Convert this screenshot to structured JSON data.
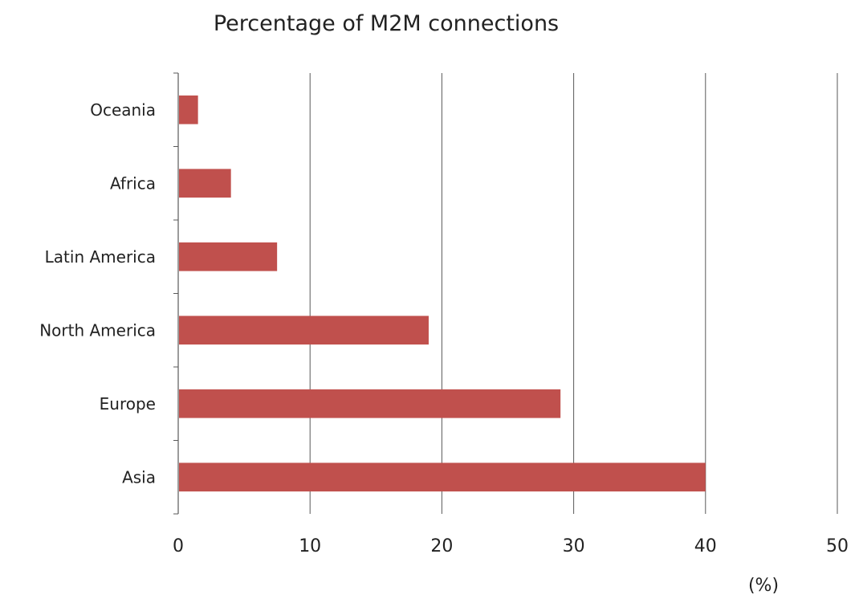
{
  "chart_data": {
    "type": "bar",
    "orientation": "horizontal",
    "title": "Percentage of M2M connections",
    "categories": [
      "Oceania",
      "Africa",
      "Latin America",
      "North America",
      "Europe",
      "Asia"
    ],
    "values": [
      1.5,
      4,
      7.5,
      19,
      29,
      40
    ],
    "xlabel": "(%)",
    "ylabel": "",
    "xlim": [
      0,
      50
    ],
    "xticks": [
      "0",
      "10",
      "20",
      "30",
      "40",
      "50"
    ],
    "grid": "vertical",
    "legend": "none",
    "colors": {
      "bar": "#c0504d",
      "grid": "#595959",
      "axis": "#595959"
    }
  }
}
